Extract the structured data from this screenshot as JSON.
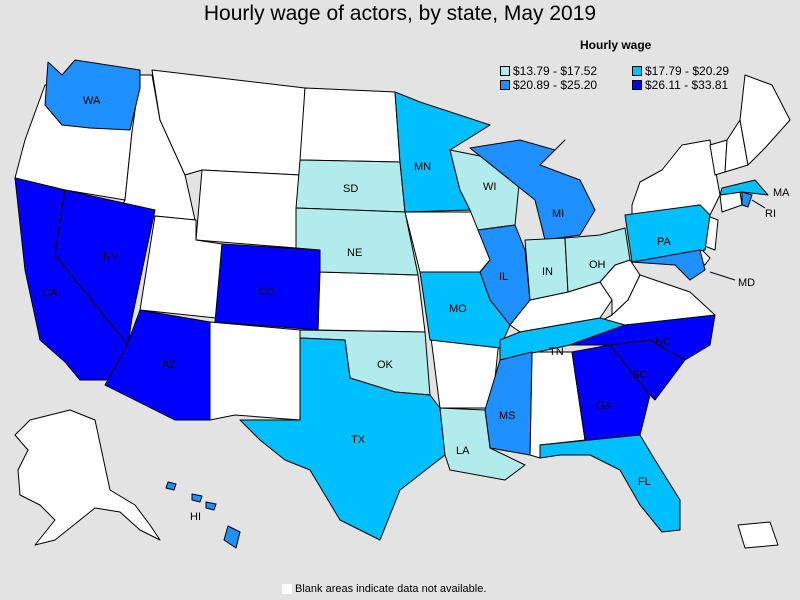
{
  "title": "Hourly wage of actors, by state, May 2019",
  "legend": {
    "title": "Hourly wage",
    "bins": [
      {
        "label": "$13.79 - $17.52",
        "color": "#b2ebeb"
      },
      {
        "label": "$17.79 - $20.29",
        "color": "#00bfff"
      },
      {
        "label": "$20.89 - $25.20",
        "color": "#1e90ff"
      },
      {
        "label": "$26.11 - $33.81",
        "color": "#0000ff"
      }
    ]
  },
  "footnote": "Blank areas indicate data not available.",
  "colors": {
    "blank": "#ffffff",
    "background": "#e3e3e3",
    "border": "#000000"
  },
  "state_labels": {
    "WA": "WA",
    "CA": "CA",
    "NV": "NV",
    "AZ": "AZ",
    "CO": "CO",
    "SD": "SD",
    "NE": "NE",
    "OK": "OK",
    "TX": "TX",
    "MN": "MN",
    "WI": "WI",
    "MI": "MI",
    "IL": "IL",
    "IN": "IN",
    "OH": "OH",
    "MO": "MO",
    "TN": "TN",
    "MS": "MS",
    "LA": "LA",
    "GA": "GA",
    "SC": "SC",
    "NC": "NC",
    "FL": "FL",
    "PA": "PA",
    "MD": "MD",
    "MA": "MA",
    "RI": "RI",
    "HI": "HI"
  },
  "state_bins": {
    "WA": 2,
    "CA": 3,
    "NV": 3,
    "AZ": 3,
    "CO": 3,
    "SD": 0,
    "NE": 0,
    "OK": 0,
    "TX": 1,
    "MN": 1,
    "WI": 0,
    "MI": 2,
    "IL": 2,
    "IN": 0,
    "OH": 0,
    "MO": 1,
    "TN": 1,
    "MS": 2,
    "LA": 0,
    "GA": 3,
    "SC": 3,
    "NC": 3,
    "FL": 1,
    "PA": 1,
    "MD": 2,
    "MA": 1,
    "RI": 2,
    "HI": 2
  }
}
